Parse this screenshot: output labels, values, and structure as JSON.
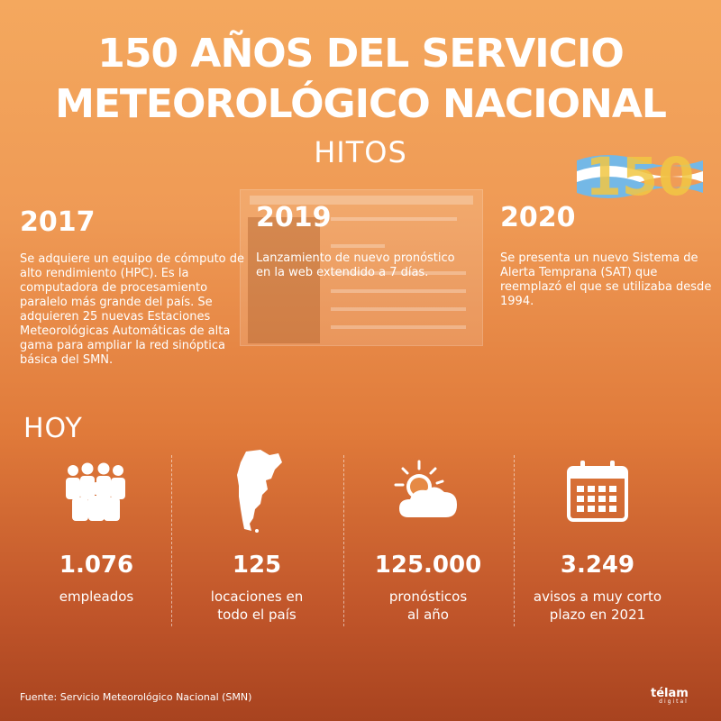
{
  "header": {
    "title_line1": "150 AÑOS DEL SERVICIO",
    "title_line2": "METEOROLÓGICO NACIONAL",
    "subtitle": "HITOS",
    "logo_text": "150"
  },
  "milestones": [
    {
      "year": "2017",
      "text": "Se adquiere un equipo de cómputo de alto rendimiento (HPC). Es la computadora de procesamiento paralelo más grande del país. Se adquieren 25 nuevas Estaciones Meteorológicas Automáticas de alta gama para ampliar la red sinóptica básica del SMN."
    },
    {
      "year": "2019",
      "text": "Lanzamiento de nuevo pronóstico en la web extendido a 7 días."
    },
    {
      "year": "2020",
      "text": "Se presenta un nuevo Sistema de Alerta Temprana (SAT) que reemplazó el que se utilizaba desde 1994."
    }
  ],
  "today": {
    "heading": "HOY",
    "stats": [
      {
        "value": "1.076",
        "label_line1": "empleados",
        "label_line2": "",
        "icon": "people-icon"
      },
      {
        "value": "125",
        "label_line1": "locaciones en",
        "label_line2": "todo el país",
        "icon": "argentina-map-icon"
      },
      {
        "value": "125.000",
        "label_line1": "pronósticos",
        "label_line2": "al año",
        "icon": "sun-cloud-icon"
      },
      {
        "value": "3.249",
        "label_line1": "avisos a muy corto",
        "label_line2": "plazo en 2021",
        "icon": "calendar-icon"
      }
    ]
  },
  "footer": {
    "source": "Fuente: Servicio Meteorológico Nacional (SMN)",
    "brand": "télam",
    "brand_sub": "digital"
  },
  "colors": {
    "bg_top": "#f4a85e",
    "bg_bottom": "#a8431f",
    "text": "#ffffff",
    "flag_blue": "#74b8e6",
    "logo_gold": "#f2c744"
  }
}
